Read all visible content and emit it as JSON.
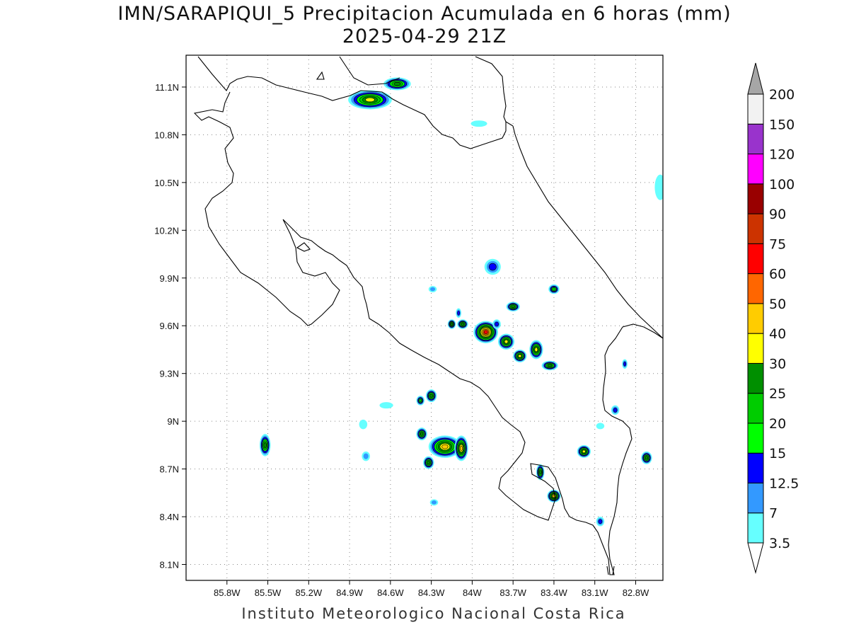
{
  "header": {
    "title": "IMN/SARAPIQUI_5 Precipitacion Acumulada en 6 horas (mm)",
    "date": "2025-04-29 21Z"
  },
  "footer": {
    "credit": "Instituto Meteorologico Nacional Costa Rica"
  },
  "map": {
    "lon_range": [
      -86.1,
      -82.6
    ],
    "lat_range": [
      8.0,
      11.3
    ],
    "x_ticks": [
      {
        "lon": -85.8,
        "label": "85.8W"
      },
      {
        "lon": -85.5,
        "label": "85.5W"
      },
      {
        "lon": -85.2,
        "label": "85.2W"
      },
      {
        "lon": -84.9,
        "label": "84.9W"
      },
      {
        "lon": -84.6,
        "label": "84.6W"
      },
      {
        "lon": -84.3,
        "label": "84.3W"
      },
      {
        "lon": -84.0,
        "label": "84W"
      },
      {
        "lon": -83.7,
        "label": "83.7W"
      },
      {
        "lon": -83.4,
        "label": "83.4W"
      },
      {
        "lon": -83.1,
        "label": "83.1W"
      },
      {
        "lon": -82.8,
        "label": "82.8W"
      }
    ],
    "y_ticks": [
      {
        "lat": 11.1,
        "label": "11.1N"
      },
      {
        "lat": 10.8,
        "label": "10.8N"
      },
      {
        "lat": 10.5,
        "label": "10.5N"
      },
      {
        "lat": 10.2,
        "label": "10.2N"
      },
      {
        "lat": 9.9,
        "label": "9.9N"
      },
      {
        "lat": 9.6,
        "label": "9.6N"
      },
      {
        "lat": 9.3,
        "label": "9.3N"
      },
      {
        "lat": 9.0,
        "label": "9N"
      },
      {
        "lat": 8.7,
        "label": "8.7N"
      },
      {
        "lat": 8.4,
        "label": "8.4N"
      },
      {
        "lat": 8.1,
        "label": "8.1N"
      }
    ],
    "grid": true,
    "precip_cells": [
      {
        "lon": -84.75,
        "lat": 11.02,
        "peak": 30,
        "rx": 0.16,
        "ry": 0.06
      },
      {
        "lon": -84.55,
        "lat": 11.12,
        "peak": 25,
        "rx": 0.1,
        "ry": 0.04
      },
      {
        "lon": -83.85,
        "lat": 9.97,
        "peak": 12.5,
        "rx": 0.06,
        "ry": 0.05
      },
      {
        "lon": -83.9,
        "lat": 9.56,
        "peak": 60,
        "rx": 0.09,
        "ry": 0.07
      },
      {
        "lon": -83.75,
        "lat": 9.5,
        "peak": 30,
        "rx": 0.06,
        "ry": 0.05
      },
      {
        "lon": -83.65,
        "lat": 9.41,
        "peak": 30,
        "rx": 0.05,
        "ry": 0.04
      },
      {
        "lon": -83.53,
        "lat": 9.45,
        "peak": 30,
        "rx": 0.05,
        "ry": 0.06
      },
      {
        "lon": -83.43,
        "lat": 9.35,
        "peak": 25,
        "rx": 0.06,
        "ry": 0.03
      },
      {
        "lon": -83.7,
        "lat": 9.72,
        "peak": 25,
        "rx": 0.05,
        "ry": 0.03
      },
      {
        "lon": -84.07,
        "lat": 9.61,
        "peak": 25,
        "rx": 0.04,
        "ry": 0.03
      },
      {
        "lon": -84.15,
        "lat": 9.61,
        "peak": 25,
        "rx": 0.03,
        "ry": 0.03
      },
      {
        "lon": -83.4,
        "lat": 9.83,
        "peak": 20,
        "rx": 0.04,
        "ry": 0.03
      },
      {
        "lon": -84.3,
        "lat": 9.16,
        "peak": 25,
        "rx": 0.04,
        "ry": 0.04
      },
      {
        "lon": -84.38,
        "lat": 9.13,
        "peak": 20,
        "rx": 0.03,
        "ry": 0.03
      },
      {
        "lon": -84.37,
        "lat": 8.92,
        "peak": 25,
        "rx": 0.04,
        "ry": 0.04
      },
      {
        "lon": -84.2,
        "lat": 8.84,
        "peak": 40,
        "rx": 0.12,
        "ry": 0.07
      },
      {
        "lon": -84.08,
        "lat": 8.83,
        "peak": 40,
        "rx": 0.05,
        "ry": 0.08
      },
      {
        "lon": -84.32,
        "lat": 8.74,
        "peak": 25,
        "rx": 0.04,
        "ry": 0.04
      },
      {
        "lon": -85.52,
        "lat": 8.85,
        "peak": 25,
        "rx": 0.04,
        "ry": 0.07
      },
      {
        "lon": -83.18,
        "lat": 8.81,
        "peak": 30,
        "rx": 0.05,
        "ry": 0.04
      },
      {
        "lon": -83.4,
        "lat": 8.53,
        "peak": 40,
        "rx": 0.05,
        "ry": 0.04
      },
      {
        "lon": -83.5,
        "lat": 8.68,
        "peak": 25,
        "rx": 0.03,
        "ry": 0.05
      },
      {
        "lon": -82.72,
        "lat": 8.77,
        "peak": 25,
        "rx": 0.04,
        "ry": 0.04
      },
      {
        "lon": -82.95,
        "lat": 9.07,
        "peak": 12.5,
        "rx": 0.03,
        "ry": 0.03
      },
      {
        "lon": -82.88,
        "lat": 9.36,
        "peak": 12.5,
        "rx": 0.02,
        "ry": 0.03
      },
      {
        "lon": -83.06,
        "lat": 8.37,
        "peak": 12.5,
        "rx": 0.03,
        "ry": 0.03
      },
      {
        "lon": -84.28,
        "lat": 8.49,
        "peak": 7,
        "rx": 0.03,
        "ry": 0.02
      },
      {
        "lon": -84.29,
        "lat": 9.83,
        "peak": 7,
        "rx": 0.03,
        "ry": 0.02
      },
      {
        "lon": -84.1,
        "lat": 9.68,
        "peak": 12.5,
        "rx": 0.02,
        "ry": 0.03
      },
      {
        "lon": -83.82,
        "lat": 9.61,
        "peak": 12.5,
        "rx": 0.03,
        "ry": 0.03
      },
      {
        "lon": -84.63,
        "lat": 9.1,
        "peak": 3.5,
        "rx": 0.05,
        "ry": 0.02
      },
      {
        "lon": -84.8,
        "lat": 8.98,
        "peak": 3.5,
        "rx": 0.03,
        "ry": 0.03
      },
      {
        "lon": -84.78,
        "lat": 8.78,
        "peak": 7,
        "rx": 0.03,
        "ry": 0.03
      },
      {
        "lon": -83.06,
        "lat": 8.97,
        "peak": 3.5,
        "rx": 0.03,
        "ry": 0.02
      },
      {
        "lon": -82.62,
        "lat": 10.47,
        "peak": 3.5,
        "rx": 0.04,
        "ry": 0.08
      },
      {
        "lon": -83.95,
        "lat": 10.87,
        "peak": 3.5,
        "rx": 0.06,
        "ry": 0.02
      }
    ]
  },
  "colorbar": {
    "levels": [
      {
        "label": "3.5",
        "color": "#66ffff"
      },
      {
        "label": "7",
        "color": "#3399ff"
      },
      {
        "label": "12.5",
        "color": "#0000ff"
      },
      {
        "label": "15",
        "color": "#00ff00"
      },
      {
        "label": "20",
        "color": "#00cc00"
      },
      {
        "label": "25",
        "color": "#008f00"
      },
      {
        "label": "30",
        "color": "#ffff00"
      },
      {
        "label": "40",
        "color": "#ffcc00"
      },
      {
        "label": "50",
        "color": "#ff6600"
      },
      {
        "label": "60",
        "color": "#ff0000"
      },
      {
        "label": "75",
        "color": "#cc3300"
      },
      {
        "label": "90",
        "color": "#990000"
      },
      {
        "label": "100",
        "color": "#ff00ff"
      },
      {
        "label": "120",
        "color": "#9933cc"
      },
      {
        "label": "150",
        "color": "#f2f2f2"
      },
      {
        "label": "200",
        "color": "#a6a6a6"
      }
    ]
  }
}
